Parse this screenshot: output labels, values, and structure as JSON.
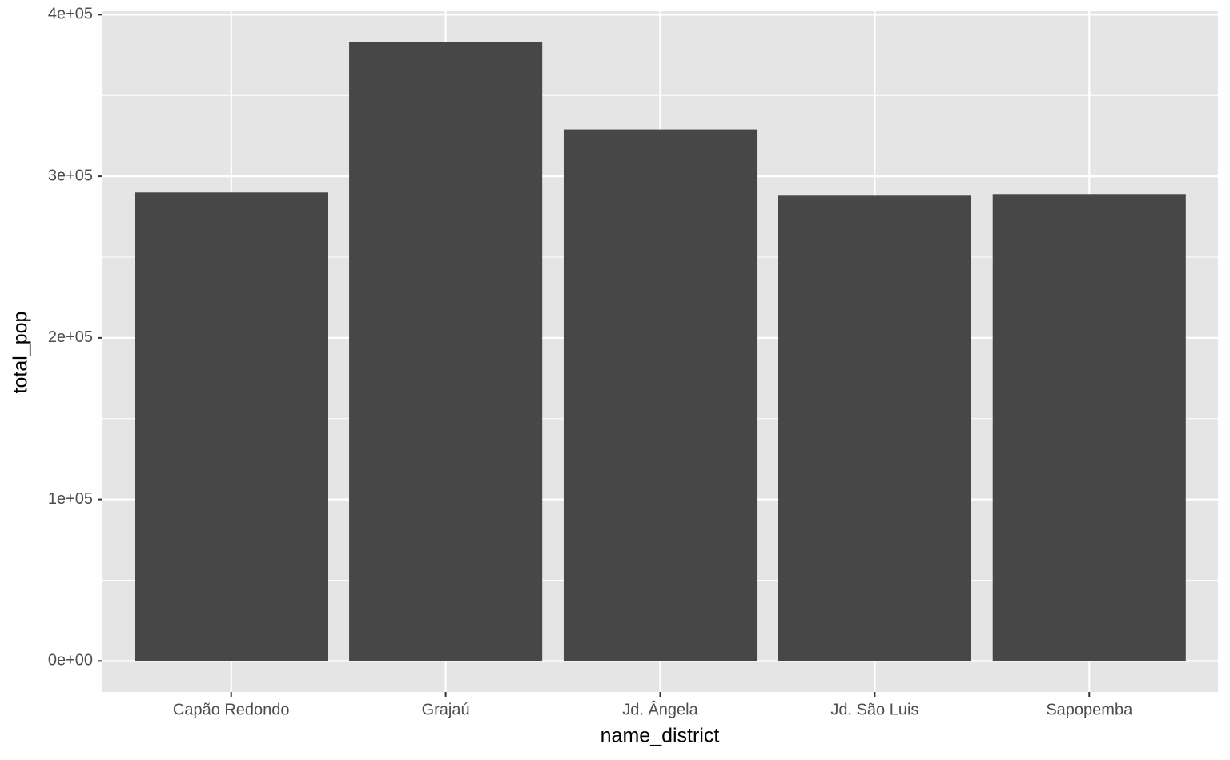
{
  "chart_data": {
    "type": "bar",
    "x_label": "name_district",
    "y_label": "total_pop",
    "categories": [
      "Capão Redondo",
      "Grajaú",
      "Jd. Ângela",
      "Jd. São Luis",
      "Sapopemba"
    ],
    "values": [
      290000,
      383000,
      329000,
      288000,
      289000
    ],
    "color": "#474747",
    "ylim": [
      -19150,
      402150
    ],
    "yticks": [
      {
        "value": 0,
        "label": "0e+00"
      },
      {
        "value": 100000,
        "label": "1e+05"
      },
      {
        "value": 200000,
        "label": "2e+05"
      },
      {
        "value": 300000,
        "label": "3e+05"
      },
      {
        "value": 400000,
        "label": "4e+05"
      }
    ],
    "grid": true
  }
}
